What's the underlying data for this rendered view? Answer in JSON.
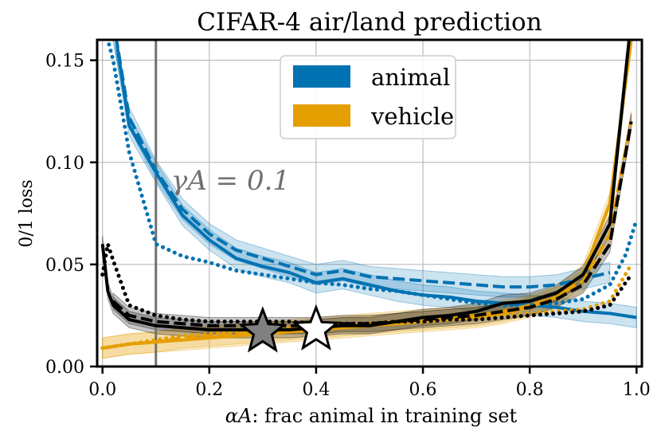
{
  "chart_data": {
    "type": "line",
    "title": "CIFAR-4 air/land prediction",
    "xlabel_symbol": "αA",
    "xlabel": "αA: frac animal in training set",
    "xlabel_text": ": frac animal in training set",
    "ylabel": "0/1 loss",
    "xlim": [
      -0.01,
      1.01
    ],
    "ylim": [
      0.0,
      0.16
    ],
    "xticks": [
      "0.0",
      "0.2",
      "0.4",
      "0.6",
      "0.8",
      "1.0"
    ],
    "xtick_values": [
      0.0,
      0.2,
      0.4,
      0.6,
      0.8,
      1.0
    ],
    "yticks": [
      "0.00",
      "0.05",
      "0.10",
      "0.15"
    ],
    "ytick_values": [
      0.0,
      0.05,
      0.1,
      0.15
    ],
    "grid": true,
    "legend": {
      "position": "top-center",
      "entries": [
        {
          "label": "animal",
          "color": "#0072B2"
        },
        {
          "label": "vehicle",
          "color": "#E69F00"
        }
      ]
    },
    "annotation": {
      "text": "γA = 0.1",
      "x_line": 0.1,
      "color": "#707070"
    },
    "colors": {
      "animal": "#0072B2",
      "vehicle": "#E69F00",
      "overall": "#000000"
    },
    "series": [
      {
        "name": "animal (solid)",
        "group": "animal",
        "style": "solid",
        "x": [
          0.02,
          0.05,
          0.1,
          0.15,
          0.2,
          0.25,
          0.3,
          0.35,
          0.4,
          0.45,
          0.5,
          0.55,
          0.6,
          0.65,
          0.7,
          0.75,
          0.8,
          0.85,
          0.9,
          0.95,
          1.0
        ],
        "y": [
          0.17,
          0.118,
          0.095,
          0.074,
          0.062,
          0.053,
          0.049,
          0.046,
          0.041,
          0.043,
          0.04,
          0.037,
          0.035,
          0.034,
          0.032,
          0.031,
          0.03,
          0.029,
          0.027,
          0.026,
          0.024
        ]
      },
      {
        "name": "animal (dashed)",
        "group": "animal",
        "style": "dashed",
        "x": [
          0.02,
          0.05,
          0.1,
          0.15,
          0.2,
          0.25,
          0.3,
          0.35,
          0.4,
          0.45,
          0.5,
          0.55,
          0.6,
          0.65,
          0.7,
          0.75,
          0.8,
          0.85,
          0.9,
          0.95
        ],
        "y": [
          0.17,
          0.122,
          0.096,
          0.077,
          0.065,
          0.057,
          0.053,
          0.049,
          0.045,
          0.047,
          0.044,
          0.043,
          0.042,
          0.041,
          0.04,
          0.039,
          0.039,
          0.04,
          0.043,
          0.046
        ]
      },
      {
        "name": "animal (dotted)",
        "group": "animal",
        "style": "dotted",
        "x": [
          0.0,
          0.02,
          0.05,
          0.1,
          0.15,
          0.2,
          0.25,
          0.3,
          0.35,
          0.4,
          0.45,
          0.5,
          0.55,
          0.6,
          0.65,
          0.7,
          0.75,
          0.8,
          0.85,
          0.9,
          0.95,
          0.98,
          1.0
        ],
        "y": [
          0.17,
          0.15,
          0.105,
          0.06,
          0.054,
          0.051,
          0.047,
          0.045,
          0.043,
          0.041,
          0.04,
          0.038,
          0.037,
          0.035,
          0.033,
          0.031,
          0.03,
          0.03,
          0.031,
          0.033,
          0.04,
          0.055,
          0.072
        ]
      },
      {
        "name": "vehicle (solid)",
        "group": "vehicle",
        "style": "solid",
        "x": [
          0.0,
          0.05,
          0.1,
          0.15,
          0.2,
          0.25,
          0.3,
          0.35,
          0.4,
          0.45,
          0.5,
          0.55,
          0.6,
          0.65,
          0.7,
          0.75,
          0.8,
          0.85,
          0.9,
          0.95,
          0.99
        ],
        "y": [
          0.009,
          0.011,
          0.012,
          0.013,
          0.014,
          0.015,
          0.016,
          0.017,
          0.018,
          0.019,
          0.02,
          0.021,
          0.022,
          0.023,
          0.024,
          0.026,
          0.029,
          0.034,
          0.045,
          0.08,
          0.16
        ]
      },
      {
        "name": "vehicle (dashed)",
        "group": "vehicle",
        "style": "dashed",
        "x": [
          0.0,
          0.05,
          0.1,
          0.15,
          0.2,
          0.25,
          0.3,
          0.35,
          0.4,
          0.45,
          0.5,
          0.55,
          0.6,
          0.65,
          0.7,
          0.75,
          0.8,
          0.85,
          0.9,
          0.95,
          0.99
        ],
        "y": [
          0.009,
          0.011,
          0.012,
          0.014,
          0.015,
          0.016,
          0.017,
          0.018,
          0.019,
          0.02,
          0.021,
          0.022,
          0.023,
          0.024,
          0.025,
          0.027,
          0.03,
          0.034,
          0.042,
          0.065,
          0.12
        ]
      },
      {
        "name": "vehicle (dotted)",
        "group": "vehicle",
        "style": "dotted",
        "x": [
          0.0,
          0.05,
          0.1,
          0.15,
          0.2,
          0.25,
          0.3,
          0.35,
          0.4,
          0.45,
          0.5,
          0.55,
          0.6,
          0.65,
          0.7,
          0.75,
          0.8,
          0.85,
          0.9,
          0.95,
          0.99
        ],
        "y": [
          0.009,
          0.011,
          0.013,
          0.015,
          0.016,
          0.017,
          0.018,
          0.019,
          0.02,
          0.021,
          0.021,
          0.022,
          0.023,
          0.023,
          0.024,
          0.025,
          0.026,
          0.027,
          0.028,
          0.032,
          0.05
        ]
      },
      {
        "name": "overall (solid)",
        "group": "overall",
        "style": "solid",
        "x": [
          0.0,
          0.01,
          0.02,
          0.05,
          0.1,
          0.15,
          0.2,
          0.25,
          0.3,
          0.35,
          0.4,
          0.45,
          0.5,
          0.55,
          0.6,
          0.65,
          0.7,
          0.75,
          0.8,
          0.85,
          0.9,
          0.95,
          0.99
        ],
        "y": [
          0.06,
          0.037,
          0.03,
          0.023,
          0.02,
          0.019,
          0.018,
          0.018,
          0.018,
          0.018,
          0.019,
          0.02,
          0.02,
          0.022,
          0.024,
          0.025,
          0.027,
          0.031,
          0.032,
          0.036,
          0.045,
          0.07,
          0.17
        ]
      },
      {
        "name": "overall (dashed)",
        "group": "overall",
        "style": "dashed",
        "x": [
          0.02,
          0.05,
          0.1,
          0.15,
          0.2,
          0.25,
          0.3,
          0.35,
          0.4,
          0.45,
          0.5,
          0.55,
          0.6,
          0.65,
          0.7,
          0.75,
          0.8,
          0.85,
          0.9,
          0.95,
          0.99
        ],
        "y": [
          0.032,
          0.025,
          0.022,
          0.021,
          0.02,
          0.02,
          0.02,
          0.02,
          0.02,
          0.021,
          0.021,
          0.022,
          0.023,
          0.024,
          0.025,
          0.027,
          0.029,
          0.033,
          0.04,
          0.06,
          0.12
        ]
      },
      {
        "name": "overall (dotted)",
        "group": "overall",
        "style": "dotted",
        "x": [
          0.0,
          0.01,
          0.02,
          0.05,
          0.1,
          0.15,
          0.2,
          0.25,
          0.3,
          0.35,
          0.4,
          0.45,
          0.5,
          0.55,
          0.6,
          0.65,
          0.7,
          0.75,
          0.8,
          0.85,
          0.9,
          0.95,
          0.99
        ],
        "y": [
          0.045,
          0.06,
          0.052,
          0.03,
          0.025,
          0.023,
          0.022,
          0.022,
          0.022,
          0.022,
          0.021,
          0.021,
          0.021,
          0.022,
          0.022,
          0.023,
          0.023,
          0.024,
          0.025,
          0.026,
          0.027,
          0.03,
          0.045
        ]
      }
    ],
    "markers": [
      {
        "name": "gray-star",
        "x": 0.3,
        "y": 0.017,
        "fill": "#808080"
      },
      {
        "name": "white-star",
        "x": 0.4,
        "y": 0.018,
        "fill": "#ffffff"
      }
    ]
  }
}
